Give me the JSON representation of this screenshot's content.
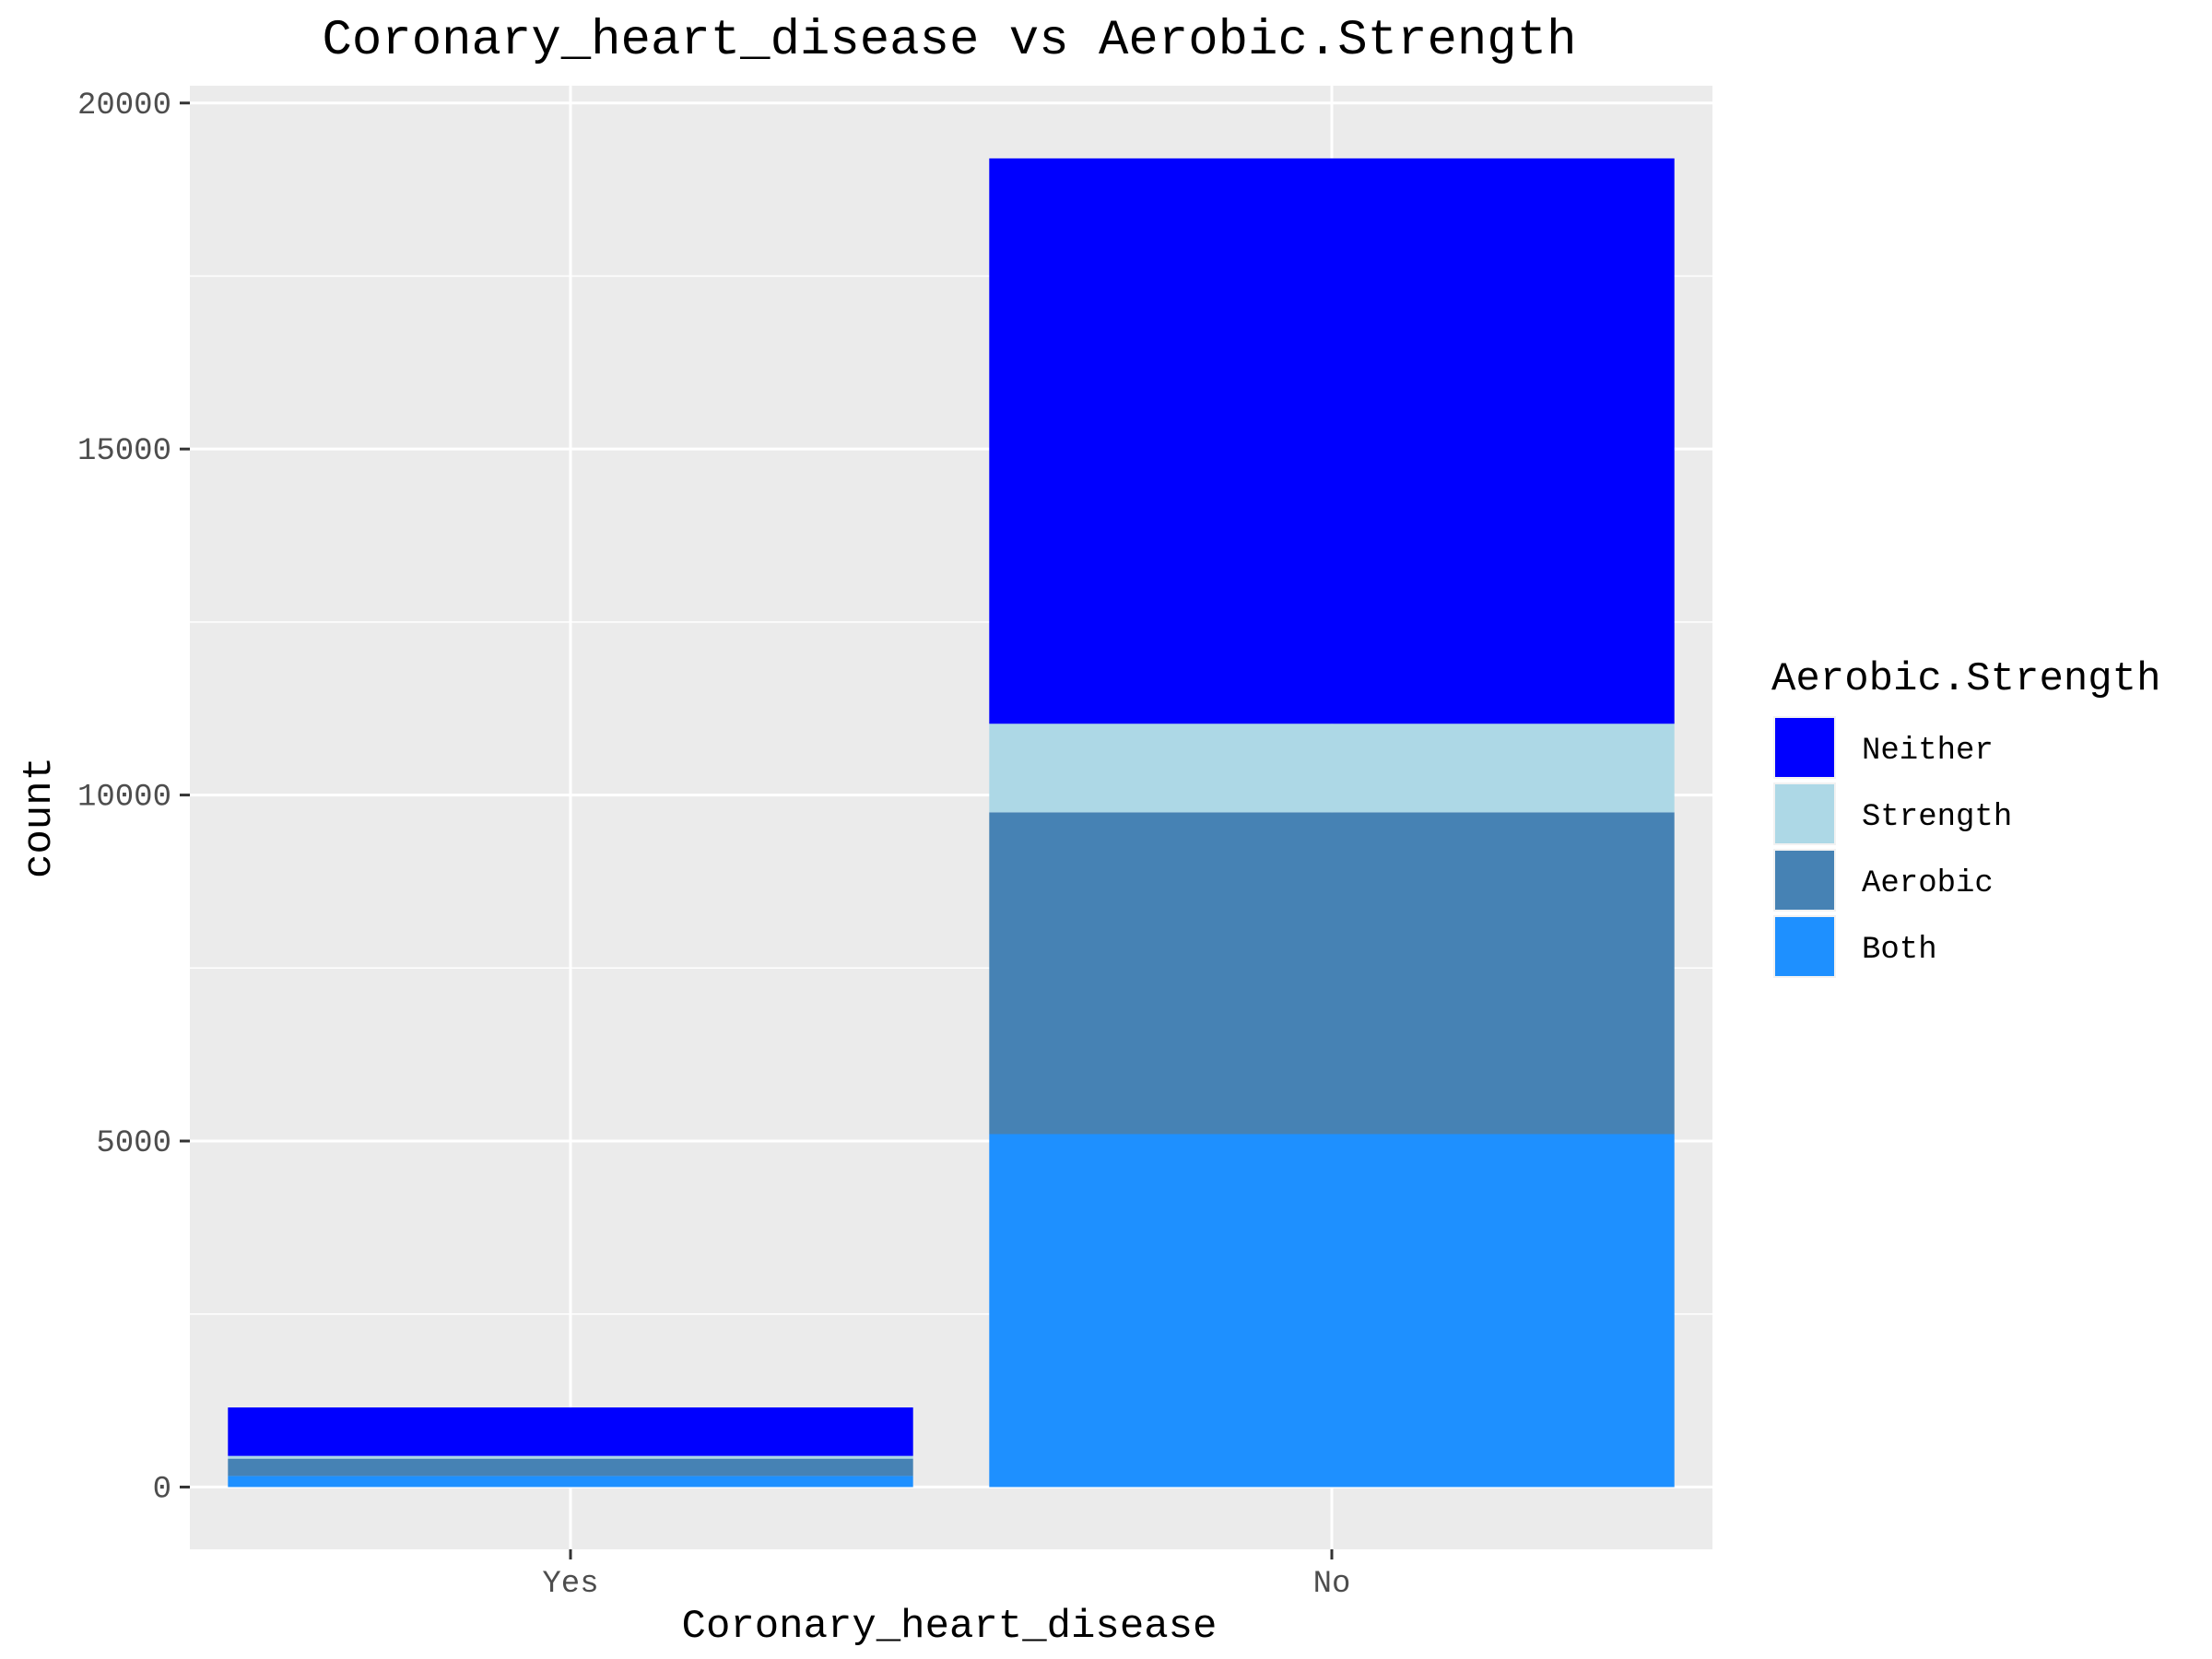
{
  "chart_data": {
    "type": "bar",
    "stacked": true,
    "title": "Coronary_heart_disease vs Aerobic.Strength",
    "xlabel": "Coronary_heart_disease",
    "ylabel": "count",
    "categories": [
      "Yes",
      "No"
    ],
    "ylim": [
      -900,
      20250
    ],
    "yticks": [
      0,
      5000,
      10000,
      15000,
      20000
    ],
    "legend_title": "Aerobic.Strength",
    "legend_position": "right",
    "grid": true,
    "series": [
      {
        "name": "Both",
        "color": "#1E90FF",
        "values": [
          160,
          5100
        ]
      },
      {
        "name": "Aerobic",
        "color": "#4682B4",
        "values": [
          250,
          4650
        ]
      },
      {
        "name": "Strength",
        "color": "#ADD8E6",
        "values": [
          40,
          1280
        ]
      },
      {
        "name": "Neither",
        "color": "#0000FF",
        "values": [
          700,
          8170
        ]
      }
    ],
    "legend_order": [
      "Neither",
      "Strength",
      "Aerobic",
      "Both"
    ]
  }
}
